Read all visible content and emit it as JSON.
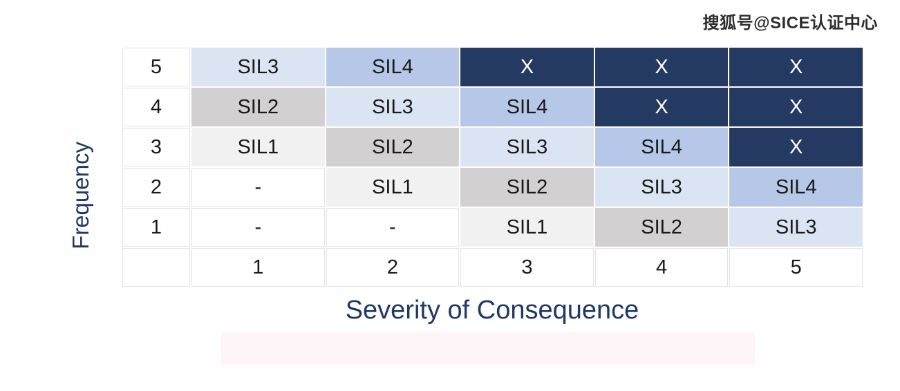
{
  "watermark": {
    "text": "搜狐号@SICE认证中心"
  },
  "chart_data": {
    "type": "heatmap",
    "xlabel": "Severity of Consequence",
    "ylabel": "Frequency",
    "x_categories": [
      "1",
      "2",
      "3",
      "4",
      "5"
    ],
    "y_categories": [
      "5",
      "4",
      "3",
      "2",
      "1"
    ],
    "rows": [
      [
        "SIL3",
        "SIL4",
        "X",
        "X",
        "X"
      ],
      [
        "SIL2",
        "SIL3",
        "SIL4",
        "X",
        "X"
      ],
      [
        "SIL1",
        "SIL2",
        "SIL3",
        "SIL4",
        "X"
      ],
      [
        "-",
        "SIL1",
        "SIL2",
        "SIL3",
        "SIL4"
      ],
      [
        "-",
        "-",
        "SIL1",
        "SIL2",
        "SIL3"
      ]
    ],
    "palette": {
      "SIL1": "#F2F1F1",
      "SIL2": "#D2D0D0",
      "SIL3": "#DBE4F3",
      "SIL4": "#B6C7E7",
      "X": "#243A63",
      "-": "#FFFFFF"
    },
    "text_colors": {
      "X": "#FFFFFF",
      "default": "#1A1A1A"
    },
    "axis_label_color": "#1F3864",
    "grid": true,
    "legend_position": "none"
  }
}
